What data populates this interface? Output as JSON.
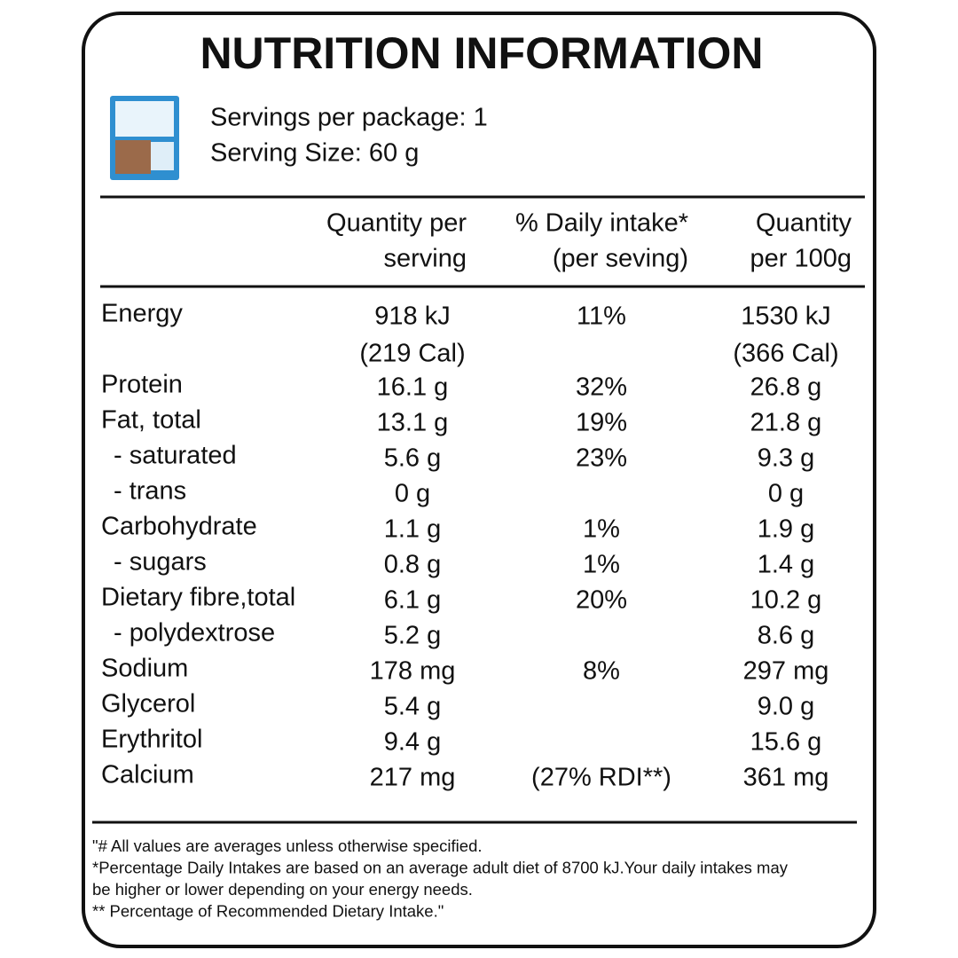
{
  "header": {
    "title": "NUTRITION INFORMATION",
    "servings_per_package": "Servings per package: 1",
    "serving_size": "Serving Size: 60 g"
  },
  "table": {
    "headers": [
      [
        "Quantity per",
        "serving"
      ],
      [
        "% Daily  intake*",
        "(per seving)"
      ],
      [
        "Quantity",
        "per 100g"
      ]
    ],
    "rows": [
      [
        "Energy",
        [
          "918 kJ",
          "(219 Cal)"
        ],
        [
          "11%"
        ],
        [
          "1530 kJ",
          "(366 Cal)"
        ]
      ],
      [
        "Protein",
        [
          "16.1 g"
        ],
        [
          "32%"
        ],
        [
          "26.8 g"
        ]
      ],
      [
        "Fat, total",
        [
          "13.1 g"
        ],
        [
          "19%"
        ],
        [
          "21.8 g"
        ]
      ],
      [
        "- saturated",
        [
          "5.6 g"
        ],
        [
          "23%"
        ],
        [
          "9.3 g"
        ]
      ],
      [
        "- trans",
        [
          "0 g"
        ],
        [],
        [
          "0 g"
        ]
      ],
      [
        "Carbohydrate",
        [
          "1.1 g"
        ],
        [
          "1%"
        ],
        [
          "1.9 g"
        ]
      ],
      [
        "- sugars",
        [
          "0.8 g"
        ],
        [
          "1%"
        ],
        [
          "1.4 g"
        ]
      ],
      [
        "Dietary fibre,total",
        [
          "6.1 g"
        ],
        [
          "20%"
        ],
        [
          "10.2 g"
        ]
      ],
      [
        "- polydextrose",
        [
          "5.2 g"
        ],
        [],
        [
          "8.6 g"
        ]
      ],
      [
        "Sodium",
        [
          "178 mg"
        ],
        [
          "8%"
        ],
        [
          "297 mg"
        ]
      ],
      [
        "Glycerol",
        [
          "5.4 g"
        ],
        [],
        [
          "9.0 g"
        ]
      ],
      [
        "Erythritol",
        [
          "9.4 g"
        ],
        [],
        [
          "15.6 g"
        ]
      ],
      [
        "Calcium",
        [
          "217 mg"
        ],
        [
          "(27% RDI**)"
        ],
        [
          "361 mg"
        ]
      ]
    ]
  },
  "footnote": {
    "lines": [
      "\"# All values are averages unless otherwise specified.",
      "*Percentage Daily Intakes are based on an average adult diet of 8700 kJ.Your daily intakes may",
      "be higher or lower depending on your energy needs.",
      "** Percentage of Recommended Dietary Intake.\""
    ]
  }
}
